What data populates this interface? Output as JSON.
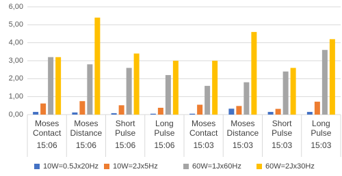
{
  "chart_data": {
    "type": "bar",
    "categories": [
      "Moses Contact",
      "Moses Distance",
      "Short Pulse",
      "Long Pulse",
      "Moses Contact",
      "Moses Distance",
      "Short Pulse",
      "Long Pulse"
    ],
    "subcategories": [
      "15:06",
      "15:06",
      "15:06",
      "15:06",
      "15:03",
      "15:03",
      "15:03",
      "15:03"
    ],
    "series": [
      {
        "name": "10W=0.5Jx20Hz",
        "color": "#4472c4",
        "values": [
          0.15,
          0.12,
          0.08,
          0.05,
          0.05,
          0.33,
          0.15,
          0.15
        ]
      },
      {
        "name": "10W=2Jx5Hz",
        "color": "#ed7d31",
        "values": [
          0.62,
          0.75,
          0.52,
          0.38,
          0.55,
          0.48,
          0.32,
          0.72
        ]
      },
      {
        "name": "60W=1Jx60Hz",
        "color": "#a5a5a5",
        "values": [
          3.2,
          2.8,
          2.6,
          2.2,
          1.6,
          1.8,
          2.4,
          3.6
        ]
      },
      {
        "name": "60W=2Jx30Hz",
        "color": "#ffc000",
        "values": [
          3.2,
          5.4,
          3.4,
          3.0,
          3.0,
          4.6,
          2.6,
          4.2
        ]
      }
    ],
    "ylim": [
      0,
      6
    ],
    "yticks": [
      {
        "value": 0,
        "label": "0,00"
      },
      {
        "value": 1,
        "label": "1,00"
      },
      {
        "value": 2,
        "label": "2,00"
      },
      {
        "value": 3,
        "label": "3,00"
      },
      {
        "value": 4,
        "label": "4,00"
      },
      {
        "value": 5,
        "label": "5,00"
      },
      {
        "value": 6,
        "label": "6,00"
      }
    ],
    "grid": true
  }
}
